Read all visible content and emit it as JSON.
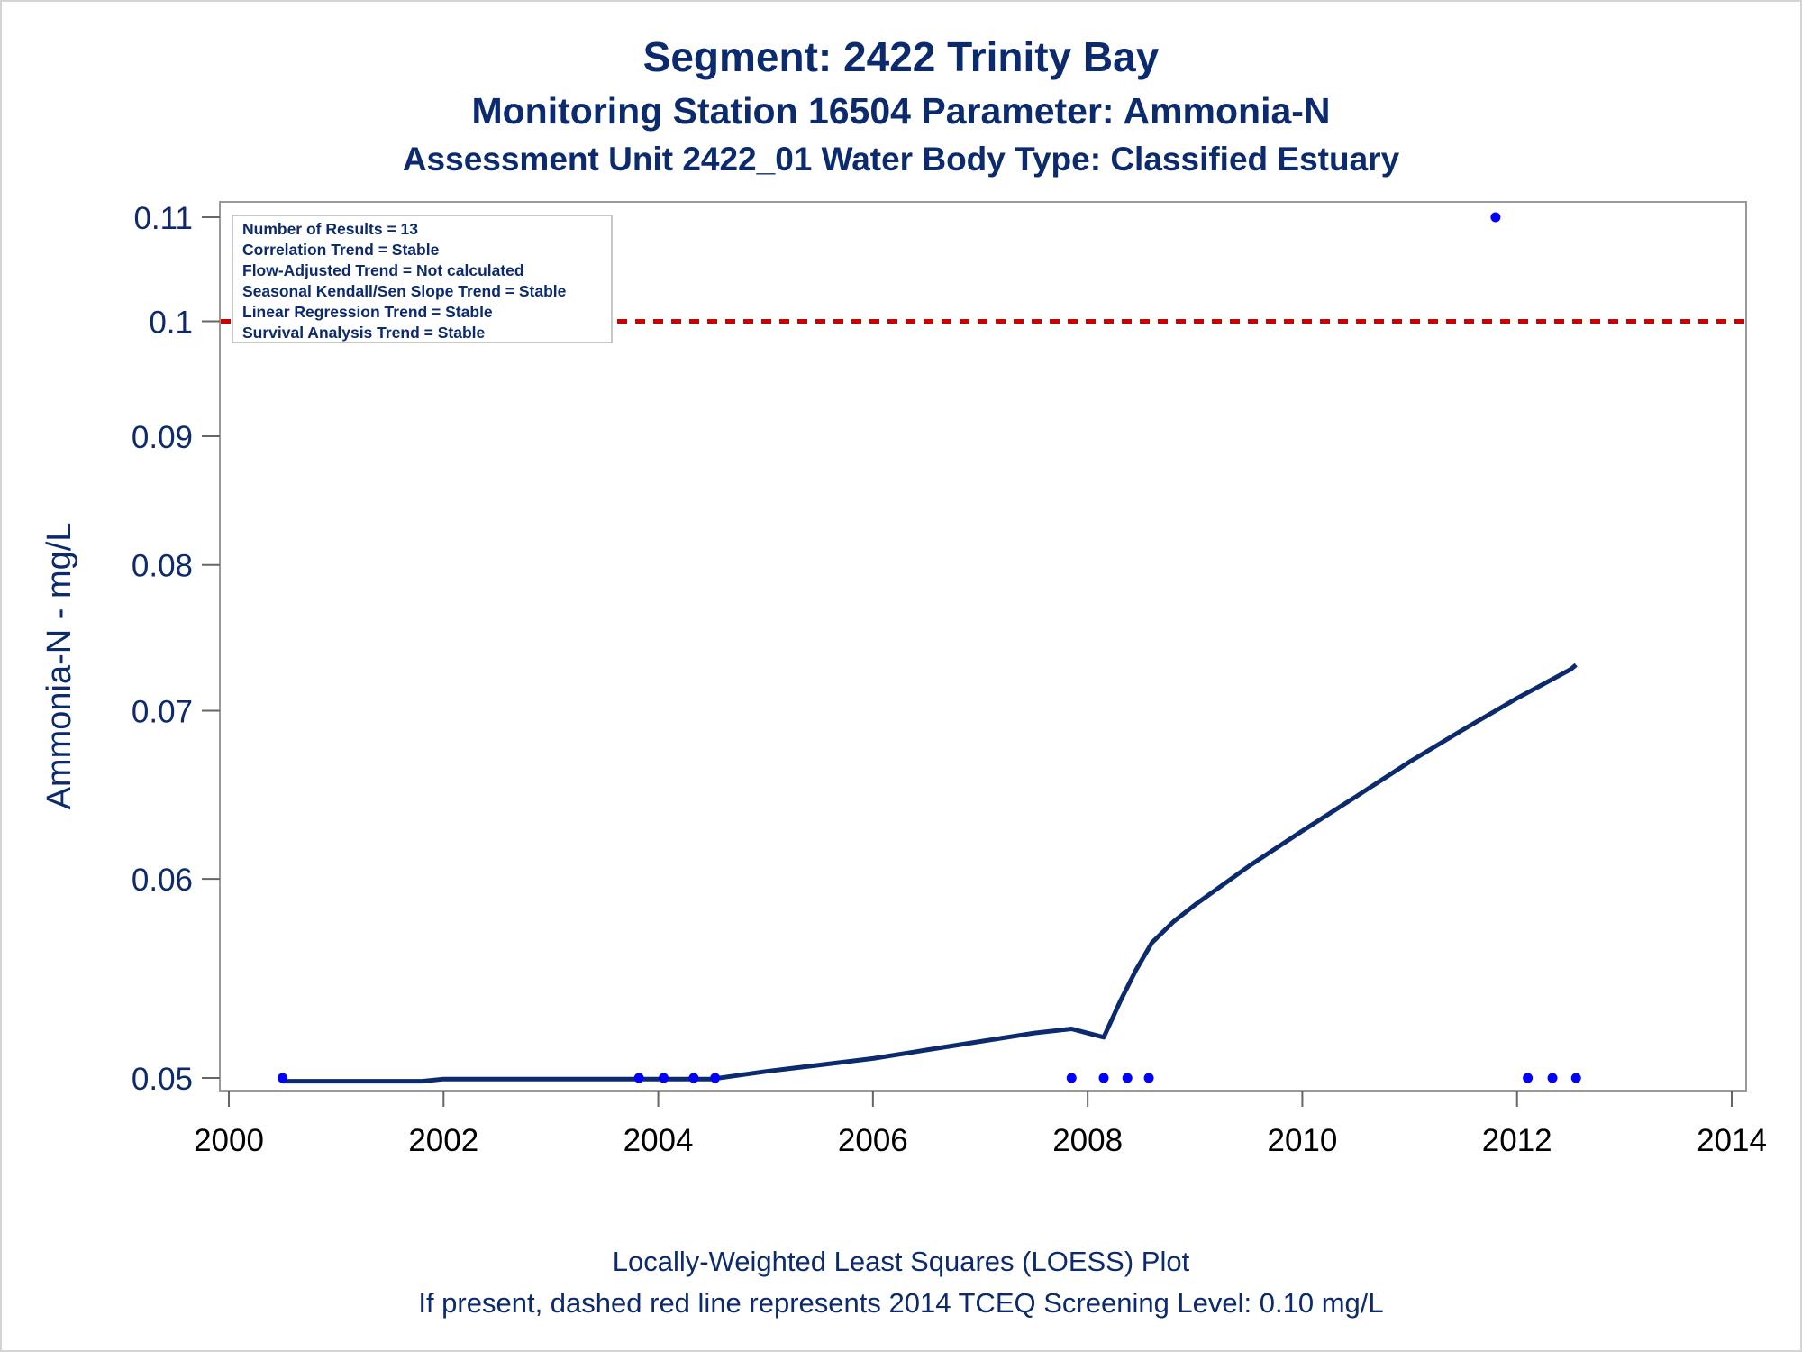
{
  "chart_data": {
    "type": "scatter",
    "title": "Segment: 2422  Trinity Bay",
    "subtitle": "Monitoring Station 16504 Parameter: Ammonia-N",
    "subtitle2": "Assessment Unit 2422_01   Water Body Type: Classified Estuary",
    "ylabel": "Ammonia-N - mg/L",
    "xlabel": "",
    "xlim": [
      2000,
      2014
    ],
    "ylim": [
      0.05,
      0.11
    ],
    "y_scale": "log",
    "x_ticks": [
      "2000",
      "2002",
      "2004",
      "2006",
      "2008",
      "2010",
      "2012",
      "2014"
    ],
    "x_tick_values": [
      2000,
      2002,
      2004,
      2006,
      2008,
      2010,
      2012,
      2014
    ],
    "y_ticks": [
      "0.05",
      "0.06",
      "0.07",
      "0.08",
      "0.09",
      "0.1",
      "0.11"
    ],
    "y_tick_values": [
      0.05,
      0.06,
      0.07,
      0.08,
      0.09,
      0.1,
      0.11
    ],
    "grid": false,
    "legend_placement": "top-left",
    "info_box": [
      "Number of Results = 13",
      "Correlation Trend = Stable",
      "Flow-Adjusted Trend = Not calculated",
      "Seasonal Kendall/Sen Slope Trend = Stable",
      "Linear Regression Trend = Stable",
      "Survival Analysis Trend = Stable"
    ],
    "points": {
      "x": [
        2000.5,
        2003.82,
        2004.05,
        2004.33,
        2004.53,
        2007.85,
        2008.15,
        2008.37,
        2008.57,
        2011.8,
        2012.1,
        2012.33,
        2012.55
      ],
      "y": [
        0.05,
        0.05,
        0.05,
        0.05,
        0.05,
        0.05,
        0.05,
        0.05,
        0.05,
        0.11,
        0.05,
        0.05,
        0.05
      ],
      "color": "#0000ff"
    },
    "loess": {
      "x": [
        2000.5,
        2001.8,
        2002.0,
        2003.8,
        2004.5,
        2005.0,
        2005.5,
        2006.0,
        2006.5,
        2007.0,
        2007.5,
        2007.85,
        2008.0,
        2008.15,
        2008.3,
        2008.45,
        2008.6,
        2008.8,
        2009.0,
        2009.5,
        2010.0,
        2010.5,
        2011.0,
        2011.5,
        2012.0,
        2012.5,
        2012.55
      ],
      "y": [
        0.04985,
        0.04985,
        0.04995,
        0.04995,
        0.04995,
        0.0503,
        0.0506,
        0.0509,
        0.0513,
        0.0517,
        0.0521,
        0.0523,
        0.0521,
        0.0519,
        0.0536,
        0.0552,
        0.0566,
        0.0577,
        0.0586,
        0.0607,
        0.0627,
        0.0647,
        0.0668,
        0.0688,
        0.0708,
        0.0727,
        0.073
      ],
      "color": "#0c2a6e"
    },
    "screening_level": {
      "value": 0.1,
      "color": "#cc0000",
      "style": "dashed"
    }
  },
  "footer": {
    "line1": "Locally-Weighted Least Squares (LOESS) Plot",
    "line2": "If present, dashed red line represents 2014 TCEQ Screening Level: 0.10 mg/L"
  }
}
